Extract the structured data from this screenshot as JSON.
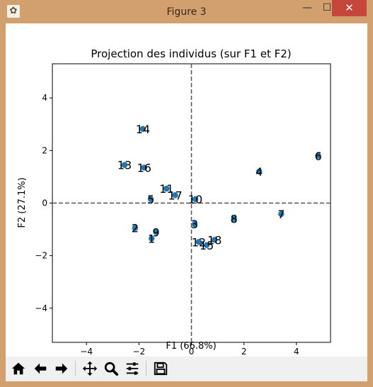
{
  "window": {
    "title": "Figure 3",
    "minimize_glyph": "—",
    "maximize_glyph": "☐",
    "close_glyph": "✕",
    "icon": "matplotlib-figure-icon"
  },
  "chart_data": {
    "type": "scatter",
    "title": "Projection des individus (sur F1 et F2)",
    "xlabel": "F1 (66.8%)",
    "ylabel": "F2 (27.1%)",
    "xlim": [
      -5.3,
      5.3
    ],
    "ylim": [
      -5.3,
      5.3
    ],
    "xticks": [
      -4,
      -2,
      0,
      2,
      4
    ],
    "yticks": [
      -4,
      -2,
      0,
      2,
      4
    ],
    "tick_labels_x": [
      "−4",
      "−2",
      "0",
      "2",
      "4"
    ],
    "tick_labels_y": [
      "−4",
      "−2",
      "0",
      "2",
      "4"
    ],
    "grid": false,
    "reference_lines": "dashed at x=0 and y=0",
    "marker_color": "#1f77b4",
    "points": [
      {
        "label": "1",
        "x": -1.52,
        "y": -1.35
      },
      {
        "label": "2",
        "x": -2.15,
        "y": -0.95
      },
      {
        "label": "3",
        "x": 0.12,
        "y": -0.8
      },
      {
        "label": "4",
        "x": 2.58,
        "y": 1.2
      },
      {
        "label": "5",
        "x": -1.55,
        "y": 0.15
      },
      {
        "label": "6",
        "x": 4.83,
        "y": 1.8
      },
      {
        "label": "7",
        "x": 3.42,
        "y": -0.42
      },
      {
        "label": "8",
        "x": 1.62,
        "y": -0.6
      },
      {
        "label": "9",
        "x": -1.35,
        "y": -1.1
      },
      {
        "label": "10",
        "x": 0.15,
        "y": 0.15
      },
      {
        "label": "11",
        "x": -0.95,
        "y": 0.55
      },
      {
        "label": "12",
        "x": 0.28,
        "y": -1.48
      },
      {
        "label": "13",
        "x": -2.55,
        "y": 1.45
      },
      {
        "label": "14",
        "x": -1.85,
        "y": 2.82
      },
      {
        "label": "15",
        "x": 0.58,
        "y": -1.6
      },
      {
        "label": "16",
        "x": -1.8,
        "y": 1.35
      },
      {
        "label": "17",
        "x": -0.62,
        "y": 0.3
      },
      {
        "label": "18",
        "x": 0.88,
        "y": -1.4
      }
    ]
  },
  "toolbar": {
    "buttons": [
      {
        "name": "home-icon"
      },
      {
        "name": "back-arrow-icon"
      },
      {
        "name": "forward-arrow-icon"
      },
      {
        "name": "pan-move-icon"
      },
      {
        "name": "zoom-magnifier-icon"
      },
      {
        "name": "configure-subplots-icon"
      },
      {
        "name": "save-floppy-icon"
      }
    ]
  }
}
